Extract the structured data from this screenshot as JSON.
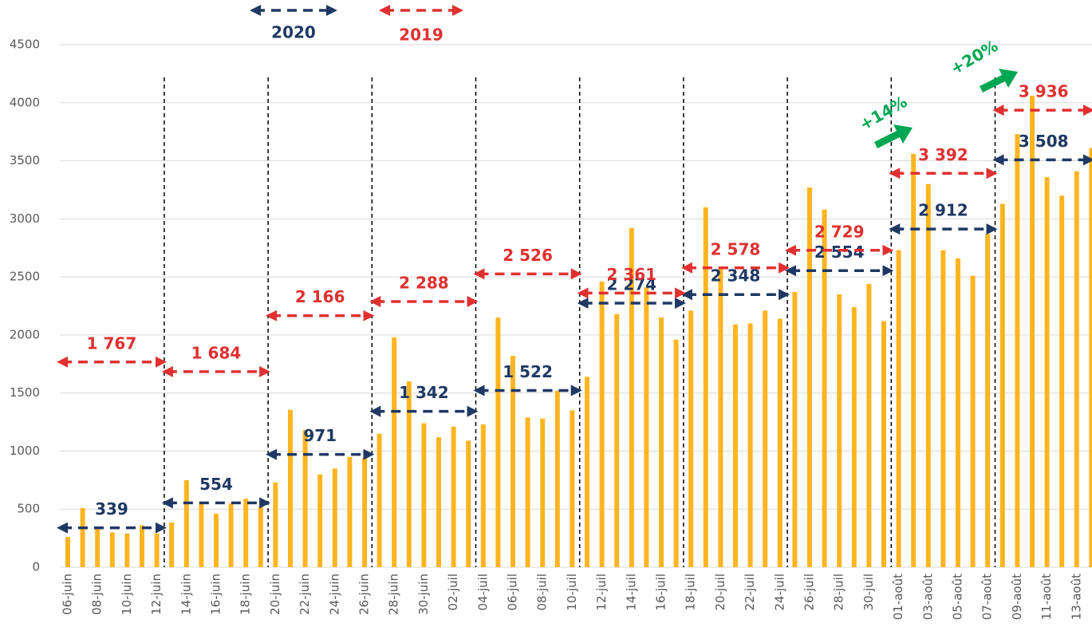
{
  "chart_data": {
    "type": "bar",
    "color": "#FFB521",
    "categories": [
      "06-juin",
      null,
      "08-juin",
      null,
      "10-juin",
      null,
      "12-juin",
      null,
      "14-juin",
      null,
      "16-juin",
      null,
      "18-juin",
      null,
      "20-juin",
      null,
      "22-juin",
      null,
      "24-juin",
      null,
      "26-juin",
      null,
      "28-juin",
      null,
      "30-juin",
      null,
      "02-juil",
      null,
      "04-juil",
      null,
      "06-juil",
      null,
      "08-juil",
      null,
      "10-juil",
      null,
      "12-juil",
      null,
      "14-juil",
      null,
      "16-juil",
      null,
      "18-juil",
      null,
      "20-juil",
      null,
      "22-juil",
      null,
      "24-juil",
      null,
      "26-juil",
      null,
      "28-juil",
      null,
      "30-juil",
      null,
      "01-août",
      null,
      "03-août",
      null,
      "05-août",
      null,
      "07-août",
      null,
      "09-août",
      null,
      "11-août",
      null,
      "13-août",
      null
    ],
    "values": [
      260,
      510,
      350,
      300,
      290,
      360,
      290,
      385,
      750,
      560,
      460,
      550,
      590,
      520,
      730,
      1355,
      1180,
      800,
      850,
      950,
      940,
      1150,
      1980,
      1600,
      1240,
      1120,
      1210,
      1090,
      1230,
      2150,
      1820,
      1290,
      1280,
      1520,
      1350,
      1640,
      2460,
      2180,
      2920,
      2410,
      2150,
      1960,
      2210,
      3100,
      2590,
      2090,
      2100,
      2210,
      2140,
      2370,
      3270,
      3080,
      2350,
      2240,
      2440,
      2120,
      2730,
      3560,
      3300,
      2730,
      2660,
      2510,
      2870,
      3130,
      3730,
      4060,
      3360,
      3200,
      3410,
      3610
    ],
    "ylim": [
      0,
      4500
    ],
    "yticks": [
      0,
      500,
      1000,
      1500,
      2000,
      2500,
      3000,
      3500,
      4000,
      4500
    ],
    "grid": true,
    "weekly_averages": [
      {
        "name": "2020",
        "color": "#1F3864",
        "values": [
          339,
          554,
          971,
          1342,
          1522,
          2274,
          2348,
          2554,
          2912,
          3508
        ],
        "value_labels": [
          "339",
          "554",
          "971",
          "1 342",
          "1 522",
          "2 274",
          "2 348",
          "2 554",
          "2 912",
          "3 508"
        ]
      },
      {
        "name": "2019",
        "color": "#E03030",
        "values": [
          1767,
          1684,
          2166,
          2288,
          2526,
          2361,
          2578,
          2729,
          3392,
          3936
        ],
        "value_labels": [
          "1 767",
          "1 684",
          "2 166",
          "2 288",
          "2 526",
          "2 361",
          "2 578",
          "2 729",
          "3 392",
          "3 936"
        ]
      }
    ],
    "annotations": [
      "+14%",
      "+20%"
    ],
    "annotation_color": "#00A651"
  }
}
